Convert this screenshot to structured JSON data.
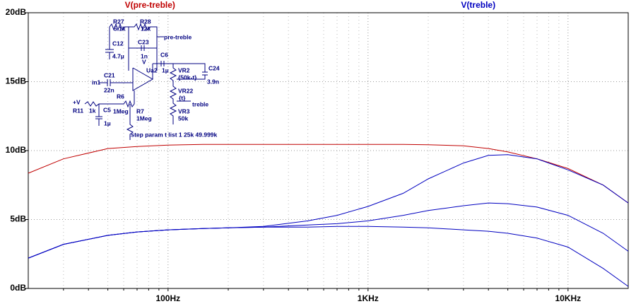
{
  "chart_data": {
    "type": "line",
    "xscale": "log",
    "grid": true,
    "x": [
      20,
      30,
      50,
      70,
      100,
      150,
      200,
      300,
      500,
      700,
      1000,
      1500,
      2000,
      3000,
      4000,
      5000,
      7000,
      10000,
      15000,
      20000
    ],
    "series": [
      {
        "name": "V(pre-treble)",
        "color": "#c00000",
        "values": [
          8.36,
          9.4,
          10.15,
          10.3,
          10.4,
          10.45,
          10.45,
          10.45,
          10.45,
          10.45,
          10.45,
          10.45,
          10.42,
          10.35,
          10.15,
          9.9,
          9.4,
          8.7,
          7.5,
          6.2
        ]
      },
      {
        "name": "V(treble)",
        "color": "#0000c0",
        "steps": [
          [
            2.2,
            3.2,
            3.85,
            4.1,
            4.25,
            4.35,
            4.4,
            4.5,
            4.9,
            5.3,
            5.95,
            6.9,
            7.95,
            9.1,
            9.65,
            9.7,
            9.4,
            8.6,
            7.5,
            6.2
          ],
          [
            2.2,
            3.2,
            3.85,
            4.1,
            4.25,
            4.35,
            4.4,
            4.45,
            4.6,
            4.7,
            4.9,
            5.3,
            5.65,
            6.0,
            6.2,
            6.15,
            5.9,
            5.3,
            4.0,
            2.7
          ],
          [
            2.2,
            3.2,
            3.85,
            4.1,
            4.25,
            4.35,
            4.4,
            4.45,
            4.45,
            4.5,
            4.5,
            4.45,
            4.4,
            4.25,
            4.15,
            4.0,
            3.65,
            3.0,
            1.45,
            0.15
          ]
        ]
      }
    ],
    "xlim": [
      20,
      20000
    ],
    "xticks": [
      {
        "value": 100,
        "label": "100Hz"
      },
      {
        "value": 1000,
        "label": "1KHz"
      },
      {
        "value": 10000,
        "label": "10KHz"
      }
    ],
    "xminor": [
      30,
      40,
      50,
      60,
      70,
      80,
      90,
      200,
      300,
      400,
      500,
      600,
      700,
      800,
      900,
      2000,
      3000,
      4000,
      5000,
      6000,
      7000,
      8000,
      9000
    ],
    "ylim": [
      0,
      20
    ],
    "yticks": [
      {
        "value": 0,
        "label": "0dB"
      },
      {
        "value": 5,
        "label": "5dB"
      },
      {
        "value": 10,
        "label": "10dB"
      },
      {
        "value": 15,
        "label": "15dB"
      },
      {
        "value": 20,
        "label": "20dB"
      }
    ]
  },
  "schematic": {
    "labels": [
      "R27",
      "R28",
      "5.1k",
      "12k",
      "pre-treble",
      "C12",
      "C23",
      "4.7µ",
      "1n",
      "C6",
      "1µ",
      "Ua2",
      "VR2",
      "{50k-t}",
      "C24",
      "3.9n",
      "C21",
      "in1",
      "22n",
      "VR22",
      "{t}",
      "treble",
      "R6",
      "+V",
      "R11",
      "1k",
      "C5",
      "1Meg",
      "R7",
      "VR3",
      "50k",
      "1Meg",
      "1µ",
      ".step param t list 1 25k 49.999k",
      "V"
    ]
  }
}
